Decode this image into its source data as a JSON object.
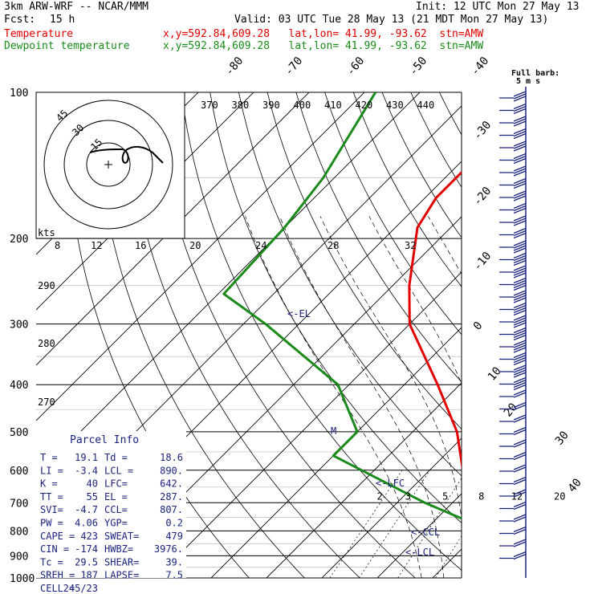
{
  "header": {
    "model": "3km ARW-WRF -- NCAR/MMM",
    "init": "Init: 12 UTC Mon 27 May 13",
    "fcst_label": "Fcst:",
    "fcst_value": "15 h",
    "valid": "Valid: 03 UTC Tue 28 May 13 (21 MDT Mon 27 May 13)",
    "temp_label": "Temperature",
    "temp_info": "x,y=592.84,609.28   lat,lon= 41.99, -93.62  stn=AMW",
    "dew_label": "Dewpoint temperature",
    "dew_info": "x,y=592.84,609.28   lat,lon= 41.99, -93.62  stn=AMW"
  },
  "colors": {
    "temperature": "#e00000",
    "dewpoint": "#1a8a1a",
    "barb": "#1a237e",
    "isotherm": "#000000"
  },
  "chart_data": {
    "type": "line",
    "title": "",
    "pressure_levels": [
      100,
      200,
      300,
      400,
      500,
      600,
      700,
      800,
      900,
      1000
    ],
    "isotherm_labels": [
      "-80",
      "-70",
      "-60",
      "-50",
      "-40",
      "-30",
      "-20",
      "-10",
      "0",
      "10",
      "20",
      "30",
      "40"
    ],
    "theta_labels_top": [
      "370",
      "380",
      "390",
      "400",
      "410",
      "420",
      "430",
      "440"
    ],
    "theta_labels_left": [
      "290",
      "280",
      "270"
    ],
    "mixing_ratio_labels": [
      "2",
      "3",
      "5",
      "8",
      "12",
      "20"
    ],
    "hodo_speed_labels": [
      "8",
      "12",
      "16",
      "20",
      "24",
      "28",
      "32"
    ],
    "hodo_unit": "kts",
    "hodo_rings": [
      "15",
      "30",
      "45"
    ],
    "barb_legend": "Full barb:",
    "barb_legend_unit": "5 m s",
    "series": [
      {
        "name": "Temperature",
        "points": [
          [
            100,
            "-62"
          ],
          [
            130,
            "-58"
          ],
          [
            165,
            "-58"
          ],
          [
            190,
            "-56"
          ],
          [
            250,
            "-47"
          ],
          [
            300,
            "-40"
          ],
          [
            400,
            "-24"
          ],
          [
            500,
            "-12"
          ],
          [
            600,
            "-4"
          ],
          [
            700,
            "4"
          ],
          [
            800,
            "12"
          ],
          [
            850,
            "17"
          ],
          [
            900,
            "20"
          ],
          [
            950,
            "19"
          ]
        ]
      },
      {
        "name": "Dewpoint temperature",
        "points": [
          [
            100,
            "-88"
          ],
          [
            150,
            "-82"
          ],
          [
            190,
            "-80"
          ],
          [
            260,
            "-79"
          ],
          [
            300,
            "-66"
          ],
          [
            400,
            "-42"
          ],
          [
            500,
            "-30"
          ],
          [
            560,
            "-30"
          ],
          [
            700,
            "-5"
          ],
          [
            800,
            "12"
          ],
          [
            850,
            "14"
          ],
          [
            900,
            "15"
          ],
          [
            950,
            "18"
          ]
        ]
      }
    ],
    "annotations": [
      "<-EL",
      "<-LFC",
      "<-CCL",
      "<-LCL",
      "M"
    ]
  },
  "parcel_info": {
    "title": "Parcel Info",
    "rows": [
      [
        "T  =",
        "19.1",
        "Td =",
        "18.6"
      ],
      [
        "LI =",
        "-3.4",
        "LCL =",
        "890."
      ],
      [
        "K  =",
        "40",
        "LFC=",
        "642."
      ],
      [
        "TT =",
        "55",
        "EL =",
        "287."
      ],
      [
        "SVI=",
        "-4.7",
        "CCL=",
        "807."
      ],
      [
        "PW =",
        "4.06",
        "YGP=",
        "0.2"
      ],
      [
        "CAPE =",
        "423",
        "SWEAT=",
        "479"
      ],
      [
        "CIN =",
        "-174",
        "HWBZ=",
        "3976."
      ],
      [
        "Tc =",
        "29.5",
        "SHEAR=",
        "39."
      ],
      [
        "SREH =",
        "187",
        "LAPSE=",
        "7.5"
      ],
      [
        "CELL =",
        "245/23",
        "",
        ""
      ]
    ]
  }
}
